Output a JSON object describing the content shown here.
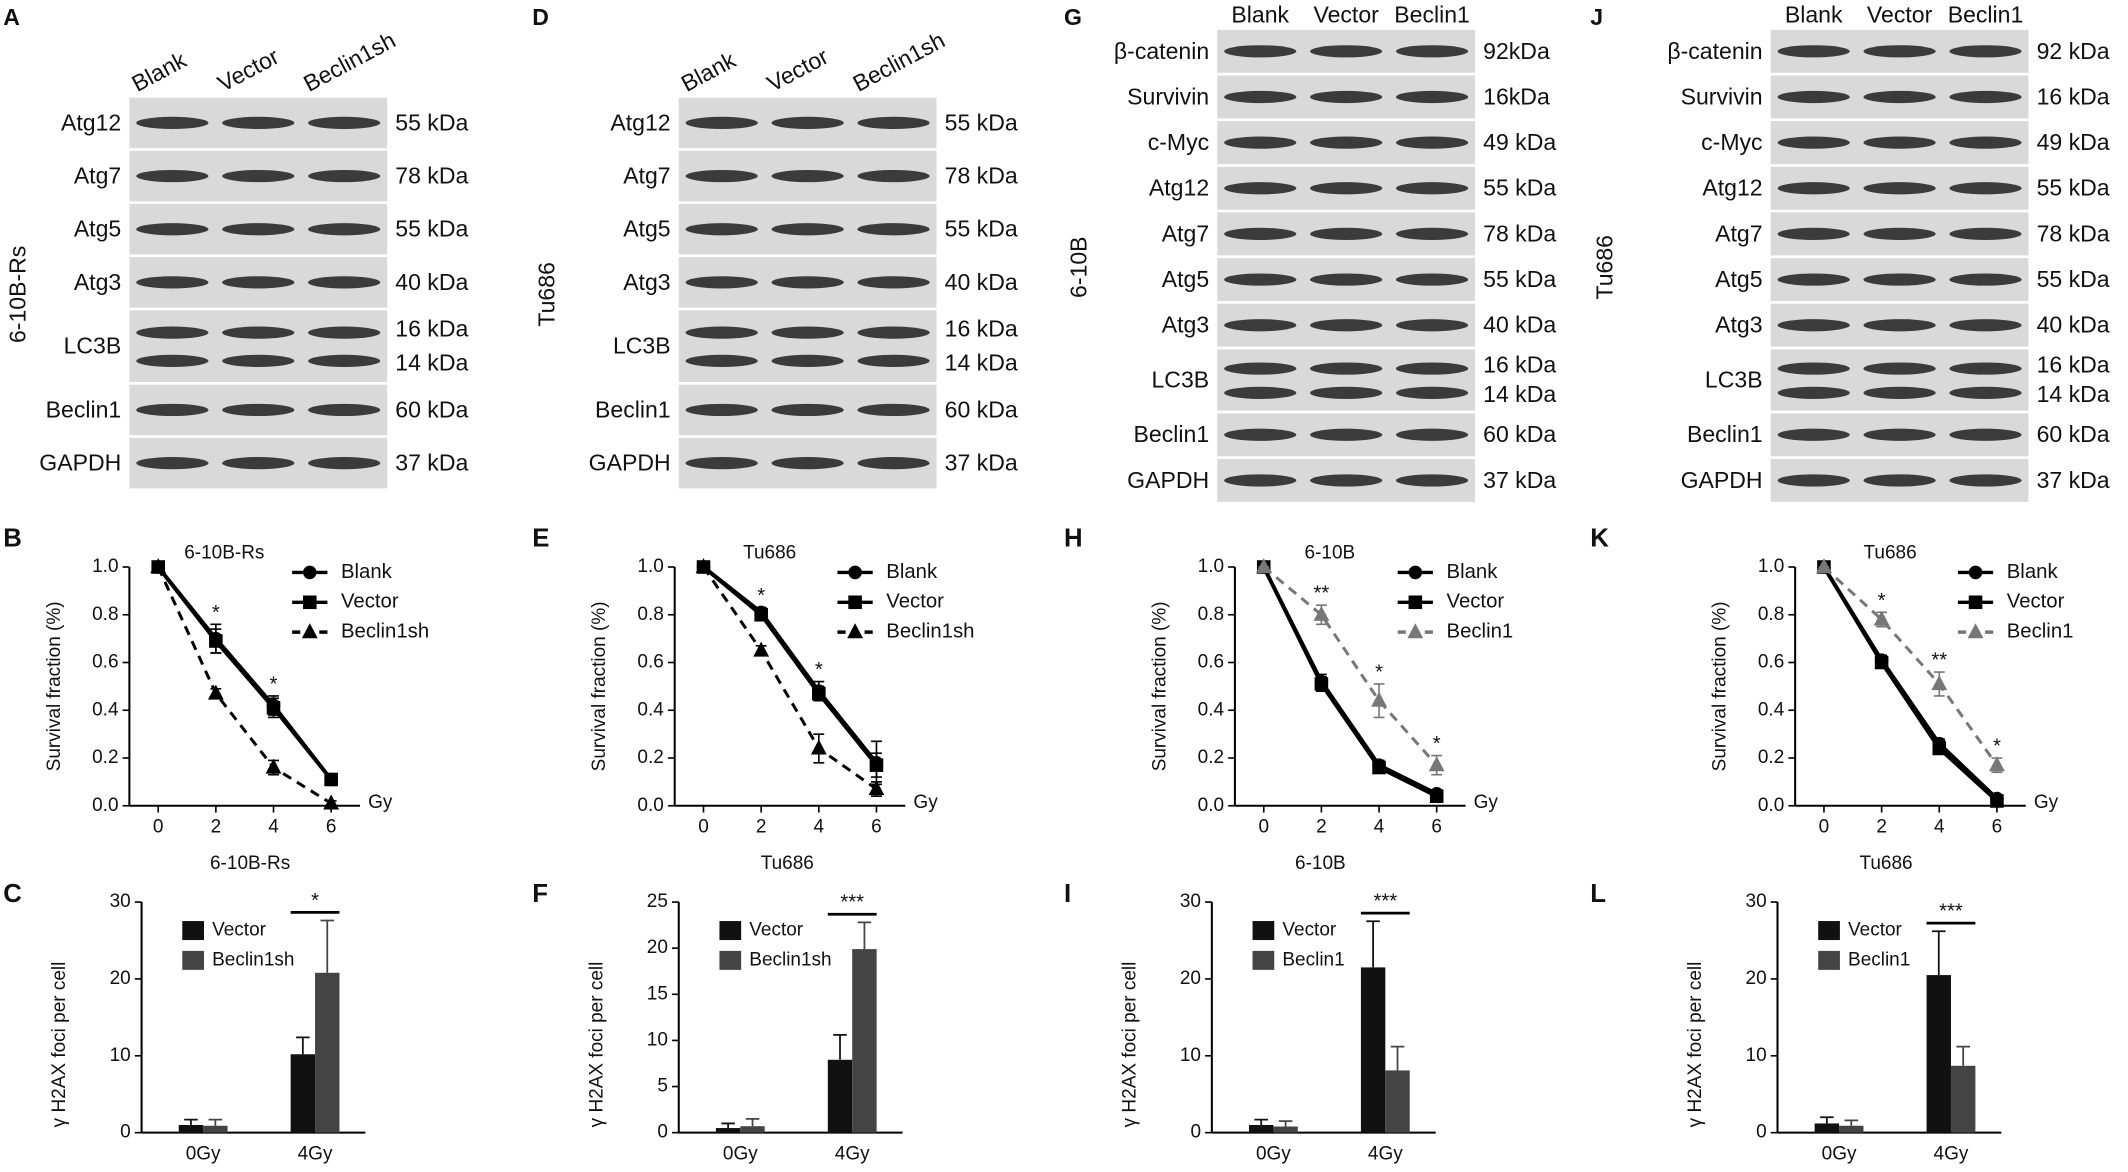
{
  "blots": [
    {
      "panel": "A",
      "cell_line": "6-10B-Rs",
      "lanes": [
        "Blank",
        "Vector",
        "Beclin1sh"
      ],
      "rows": [
        {
          "protein": "Atg12",
          "sizes": [
            "55 kDa"
          ]
        },
        {
          "protein": "Atg7",
          "sizes": [
            "78 kDa"
          ]
        },
        {
          "protein": "Atg5",
          "sizes": [
            "55 kDa"
          ]
        },
        {
          "protein": "Atg3",
          "sizes": [
            "40 kDa"
          ]
        },
        {
          "protein": "LC3B",
          "sizes": [
            "16 kDa",
            "14 kDa"
          ]
        },
        {
          "protein": "Beclin1",
          "sizes": [
            "60 kDa"
          ]
        },
        {
          "protein": "GAPDH",
          "sizes": [
            "37 kDa"
          ]
        }
      ]
    },
    {
      "panel": "D",
      "cell_line": "Tu686",
      "lanes": [
        "Blank",
        "Vector",
        "Beclin1sh"
      ],
      "rows": [
        {
          "protein": "Atg12",
          "sizes": [
            "55 kDa"
          ]
        },
        {
          "protein": "Atg7",
          "sizes": [
            "78 kDa"
          ]
        },
        {
          "protein": "Atg5",
          "sizes": [
            "55 kDa"
          ]
        },
        {
          "protein": "Atg3",
          "sizes": [
            "40 kDa"
          ]
        },
        {
          "protein": "LC3B",
          "sizes": [
            "16 kDa",
            "14 kDa"
          ]
        },
        {
          "protein": "Beclin1",
          "sizes": [
            "60 kDa"
          ]
        },
        {
          "protein": "GAPDH",
          "sizes": [
            "37 kDa"
          ]
        }
      ]
    },
    {
      "panel": "G",
      "cell_line": "6-10B",
      "lanes": [
        "Blank",
        "Vector",
        "Beclin1"
      ],
      "rows": [
        {
          "protein": "β-catenin",
          "sizes": [
            "92kDa"
          ]
        },
        {
          "protein": "Survivin",
          "sizes": [
            "16kDa"
          ]
        },
        {
          "protein": "c-Myc",
          "sizes": [
            "49 kDa"
          ]
        },
        {
          "protein": "Atg12",
          "sizes": [
            "55 kDa"
          ]
        },
        {
          "protein": "Atg7",
          "sizes": [
            "78 kDa"
          ]
        },
        {
          "protein": "Atg5",
          "sizes": [
            "55 kDa"
          ]
        },
        {
          "protein": "Atg3",
          "sizes": [
            "40 kDa"
          ]
        },
        {
          "protein": "LC3B",
          "sizes": [
            "16 kDa",
            "14 kDa"
          ]
        },
        {
          "protein": "Beclin1",
          "sizes": [
            "60 kDa"
          ]
        },
        {
          "protein": "GAPDH",
          "sizes": [
            "37 kDa"
          ]
        }
      ]
    },
    {
      "panel": "J",
      "cell_line": "Tu686",
      "lanes": [
        "Blank",
        "Vector",
        "Beclin1"
      ],
      "rows": [
        {
          "protein": "β-catenin",
          "sizes": [
            "92 kDa"
          ]
        },
        {
          "protein": "Survivin",
          "sizes": [
            "16 kDa"
          ]
        },
        {
          "protein": "c-Myc",
          "sizes": [
            "49 kDa"
          ]
        },
        {
          "protein": "Atg12",
          "sizes": [
            "55 kDa"
          ]
        },
        {
          "protein": "Atg7",
          "sizes": [
            "78 kDa"
          ]
        },
        {
          "protein": "Atg5",
          "sizes": [
            "55 kDa"
          ]
        },
        {
          "protein": "Atg3",
          "sizes": [
            "40 kDa"
          ]
        },
        {
          "protein": "LC3B",
          "sizes": [
            "16 kDa",
            "14 kDa"
          ]
        },
        {
          "protein": "Beclin1",
          "sizes": [
            "60 kDa"
          ]
        },
        {
          "protein": "GAPDH",
          "sizes": [
            "37 kDa"
          ]
        }
      ]
    }
  ],
  "chart_data": [
    {
      "type": "line",
      "panel": "B",
      "title": "6-10B-Rs",
      "y_label": "Survival fraction (%)",
      "x_label": "Gy",
      "x": [
        0,
        2,
        4,
        6
      ],
      "xlim": [
        -1,
        7
      ],
      "xticks": [
        0,
        2,
        4,
        6
      ],
      "ylim": [
        0,
        1
      ],
      "yticks": [
        {
          "value": 0,
          "label": "0.0"
        },
        0.2,
        0.4,
        0.6,
        0.8,
        {
          "value": 1,
          "label": "1.0"
        }
      ],
      "legend": "upper right",
      "series": [
        {
          "name": "Blank",
          "color": "#000000",
          "marker": "circle",
          "dash": false,
          "values": [
            1,
            0.7,
            0.42,
            0.11
          ],
          "errors": [
            0,
            0.06,
            0.04,
            0.01
          ]
        },
        {
          "name": "Vector",
          "color": "#000000",
          "marker": "square",
          "dash": false,
          "values": [
            1,
            0.69,
            0.41,
            0.11
          ],
          "errors": [
            0,
            0.05,
            0.04,
            0.01
          ]
        },
        {
          "name": "Beclin1sh",
          "color": "#000000",
          "marker": "triangle",
          "dash": true,
          "values": [
            1,
            0.47,
            0.16,
            0.01
          ],
          "errors": [
            0,
            0.02,
            0.03,
            0.01
          ]
        }
      ],
      "significance": [
        null,
        "*",
        "*",
        null
      ]
    },
    {
      "type": "bar",
      "panel": "C",
      "title": "6-10B-Rs",
      "y_label": "γ H2AX foci per cell",
      "categories": [
        "0Gy",
        "4Gy"
      ],
      "ylim": [
        0,
        30
      ],
      "yticks": [
        0,
        10,
        20,
        30
      ],
      "legend": "upper left",
      "series": [
        {
          "name": "Vector",
          "color": "#111111",
          "values": [
            1,
            10.2
          ],
          "errors": [
            0.7,
            2.2
          ]
        },
        {
          "name": "Beclin1sh",
          "color": "#444444",
          "values": [
            0.9,
            20.8
          ],
          "errors": [
            0.8,
            6.8
          ]
        }
      ],
      "significance": [
        null,
        "*"
      ]
    },
    {
      "type": "line",
      "panel": "E",
      "title": "Tu686",
      "y_label": "Survival fraction (%)",
      "x_label": "Gy",
      "x": [
        0,
        2,
        4,
        6
      ],
      "xlim": [
        -1,
        7
      ],
      "xticks": [
        0,
        2,
        4,
        6
      ],
      "ylim": [
        0,
        1
      ],
      "yticks": [
        {
          "value": 0,
          "label": "0.0"
        },
        0.2,
        0.4,
        0.6,
        0.8,
        {
          "value": 1,
          "label": "1.0"
        }
      ],
      "legend": "upper right",
      "series": [
        {
          "name": "Blank",
          "color": "#000000",
          "marker": "circle",
          "dash": false,
          "values": [
            1,
            0.81,
            0.48,
            0.18
          ],
          "errors": [
            0,
            0.02,
            0.04,
            0.09
          ]
        },
        {
          "name": "Vector",
          "color": "#000000",
          "marker": "square",
          "dash": false,
          "values": [
            1,
            0.8,
            0.47,
            0.17
          ],
          "errors": [
            0,
            0.02,
            0.03,
            0.05
          ]
        },
        {
          "name": "Beclin1sh",
          "color": "#000000",
          "marker": "triangle",
          "dash": true,
          "values": [
            1,
            0.65,
            0.24,
            0.07
          ],
          "errors": [
            0,
            0.02,
            0.06,
            0.03
          ]
        }
      ],
      "significance": [
        null,
        "*",
        "*",
        null
      ]
    },
    {
      "type": "bar",
      "panel": "F",
      "title": "Tu686",
      "y_label": "γ H2AX foci per cell",
      "categories": [
        "0Gy",
        "4Gy"
      ],
      "ylim": [
        0,
        25
      ],
      "yticks": [
        0,
        5,
        10,
        15,
        20,
        25
      ],
      "legend": "upper left",
      "series": [
        {
          "name": "Vector",
          "color": "#111111",
          "values": [
            0.5,
            7.9
          ],
          "errors": [
            0.5,
            2.7
          ]
        },
        {
          "name": "Beclin1sh",
          "color": "#444444",
          "values": [
            0.7,
            19.9
          ],
          "errors": [
            0.8,
            2.9
          ]
        }
      ],
      "significance": [
        null,
        "***"
      ]
    },
    {
      "type": "line",
      "panel": "H",
      "title": "6-10B",
      "y_label": "Survival fraction (%)",
      "x_label": "Gy",
      "x": [
        0,
        2,
        4,
        6
      ],
      "xlim": [
        -1,
        7
      ],
      "xticks": [
        0,
        2,
        4,
        6
      ],
      "ylim": [
        0,
        1
      ],
      "yticks": [
        {
          "value": 0,
          "label": "0.0"
        },
        0.2,
        0.4,
        0.6,
        0.8,
        {
          "value": 1,
          "label": "1.0"
        }
      ],
      "legend": "upper right",
      "series": [
        {
          "name": "Blank",
          "color": "#000000",
          "marker": "circle",
          "dash": false,
          "values": [
            1,
            0.52,
            0.17,
            0.05
          ],
          "errors": [
            0,
            0.03,
            0.02,
            0.01
          ]
        },
        {
          "name": "Vector",
          "color": "#000000",
          "marker": "square",
          "dash": false,
          "values": [
            1,
            0.51,
            0.16,
            0.04
          ],
          "errors": [
            0,
            0.03,
            0.02,
            0.01
          ]
        },
        {
          "name": "Beclin1",
          "color": "#777777",
          "marker": "triangle",
          "dash": true,
          "values": [
            1,
            0.8,
            0.44,
            0.17
          ],
          "errors": [
            0,
            0.04,
            0.07,
            0.04
          ]
        }
      ],
      "significance": [
        null,
        "**",
        "*",
        "*"
      ]
    },
    {
      "type": "bar",
      "panel": "I",
      "title": "6-10B",
      "y_label": "γ H2AX foci per cell",
      "categories": [
        "0Gy",
        "4Gy"
      ],
      "ylim": [
        0,
        30
      ],
      "yticks": [
        0,
        10,
        20,
        30
      ],
      "legend": "upper left",
      "series": [
        {
          "name": "Vector",
          "color": "#111111",
          "values": [
            1,
            21.5
          ],
          "errors": [
            0.7,
            6
          ]
        },
        {
          "name": "Beclin1",
          "color": "#444444",
          "values": [
            0.8,
            8.1
          ],
          "errors": [
            0.7,
            3.1
          ]
        }
      ],
      "significance": [
        null,
        "***"
      ]
    },
    {
      "type": "line",
      "panel": "K",
      "title": "Tu686",
      "y_label": "Survival fraction (%)",
      "x_label": "Gy",
      "x": [
        0,
        2,
        4,
        6
      ],
      "xlim": [
        -1,
        7
      ],
      "xticks": [
        0,
        2,
        4,
        6
      ],
      "ylim": [
        0,
        1
      ],
      "yticks": [
        {
          "value": 0,
          "label": "0.0"
        },
        0.2,
        0.4,
        0.6,
        0.8,
        {
          "value": 1,
          "label": "1.0"
        }
      ],
      "legend": "upper right",
      "series": [
        {
          "name": "Blank",
          "color": "#000000",
          "marker": "circle",
          "dash": false,
          "values": [
            1,
            0.61,
            0.26,
            0.03
          ],
          "errors": [
            0,
            0.02,
            0.02,
            0.01
          ]
        },
        {
          "name": "Vector",
          "color": "#000000",
          "marker": "square",
          "dash": false,
          "values": [
            1,
            0.6,
            0.24,
            0.02
          ],
          "errors": [
            0,
            0.02,
            0.02,
            0.01
          ]
        },
        {
          "name": "Beclin1",
          "color": "#777777",
          "marker": "triangle",
          "dash": true,
          "values": [
            1,
            0.78,
            0.51,
            0.17
          ],
          "errors": [
            0,
            0.03,
            0.05,
            0.03
          ]
        }
      ],
      "significance": [
        null,
        "*",
        "**",
        "*"
      ]
    },
    {
      "type": "bar",
      "panel": "L",
      "title": "Tu686",
      "y_label": "γ H2AX foci per cell",
      "categories": [
        "0Gy",
        "4Gy"
      ],
      "ylim": [
        0,
        30
      ],
      "yticks": [
        0,
        10,
        20,
        30
      ],
      "legend": "upper left",
      "series": [
        {
          "name": "Vector",
          "color": "#111111",
          "values": [
            1.2,
            20.5
          ],
          "errors": [
            0.8,
            5.7
          ]
        },
        {
          "name": "Beclin1",
          "color": "#444444",
          "values": [
            0.9,
            8.7
          ],
          "errors": [
            0.7,
            2.5
          ]
        }
      ],
      "significance": [
        null,
        "***"
      ]
    }
  ]
}
